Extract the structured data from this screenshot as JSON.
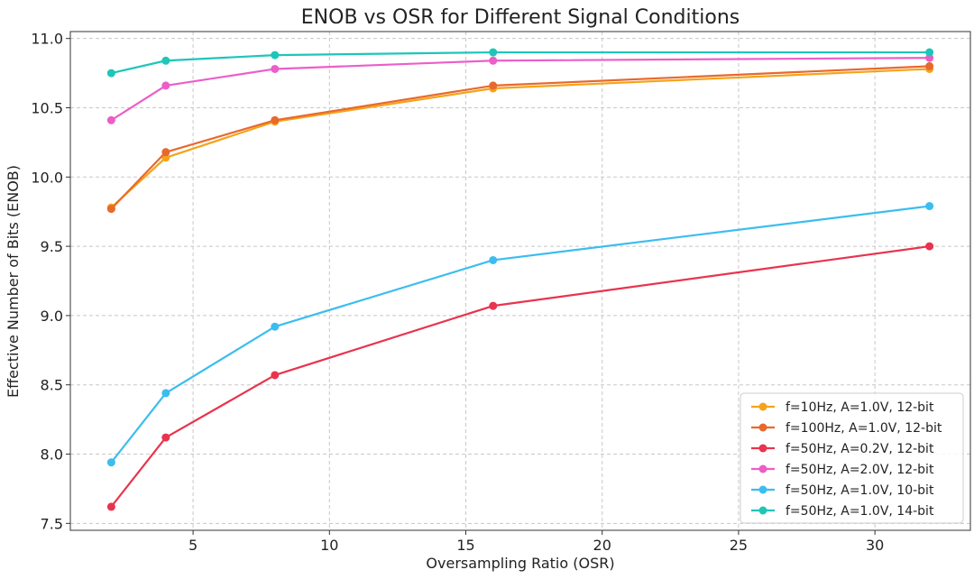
{
  "chart_data": {
    "type": "line",
    "title": "ENOB vs OSR for Different Signal Conditions",
    "xlabel": "Oversampling Ratio (OSR)",
    "ylabel": "Effective Number of Bits (ENOB)",
    "xlim": [
      0.5,
      33.5
    ],
    "ylim": [
      7.45,
      11.05
    ],
    "xticks": [
      5,
      10,
      15,
      20,
      25,
      30
    ],
    "xtick_labels": [
      "5",
      "10",
      "15",
      "20",
      "25",
      "30"
    ],
    "yticks": [
      7.5,
      8.0,
      8.5,
      9.0,
      9.5,
      10.0,
      10.5,
      11.0
    ],
    "ytick_labels": [
      "7.5",
      "8.0",
      "8.5",
      "9.0",
      "9.5",
      "10.0",
      "10.5",
      "11.0"
    ],
    "grid": true,
    "legend_position": "bottom-right",
    "x": [
      2,
      4,
      8,
      16,
      32
    ],
    "series": [
      {
        "name": "f=10Hz, A=1.0V, 12-bit",
        "color": "#f5a31a",
        "values": [
          9.78,
          10.14,
          10.4,
          10.64,
          10.78
        ]
      },
      {
        "name": "f=100Hz, A=1.0V, 12-bit",
        "color": "#e8692c",
        "values": [
          9.77,
          10.18,
          10.41,
          10.66,
          10.8
        ]
      },
      {
        "name": "f=50Hz, A=0.2V, 12-bit",
        "color": "#e8344e",
        "values": [
          7.62,
          8.12,
          8.57,
          9.07,
          9.5
        ]
      },
      {
        "name": "f=50Hz, A=2.0V, 12-bit",
        "color": "#ec5ec8",
        "values": [
          10.41,
          10.66,
          10.78,
          10.84,
          10.86
        ]
      },
      {
        "name": "f=50Hz, A=1.0V, 10-bit",
        "color": "#3bbdf0",
        "values": [
          7.94,
          8.44,
          8.92,
          9.4,
          9.79
        ]
      },
      {
        "name": "f=50Hz, A=1.0V, 14-bit",
        "color": "#1ec6b8",
        "values": [
          10.75,
          10.84,
          10.88,
          10.9,
          10.9
        ]
      }
    ]
  }
}
